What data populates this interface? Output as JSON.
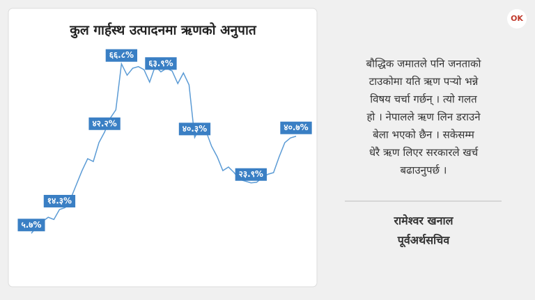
{
  "chart_data": {
    "type": "line",
    "title": "कुल गार्हस्थ उत्पादनमा ऋणको अनुपात",
    "categories": [
      null,
      null,
      null,
      null,
      null,
      null,
      null,
      null,
      null,
      null,
      null,
      null,
      null,
      null,
      null,
      null,
      null,
      null,
      null,
      null,
      null,
      null,
      null,
      null,
      null,
      null,
      null,
      null,
      null,
      null,
      null,
      null,
      null,
      null,
      null,
      null,
      null,
      null,
      null,
      null,
      null,
      null,
      null,
      null,
      null,
      null,
      null,
      null
    ],
    "values": [
      5.7,
      8.2,
      10,
      11.5,
      10.7,
      14.3,
      15,
      18.3,
      23.3,
      28.3,
      32.6,
      31.6,
      38.4,
      42.2,
      47.2,
      50.2,
      66.8,
      62.7,
      65.2,
      65.8,
      64.7,
      60.2,
      66,
      63.9,
      65.2,
      64.2,
      59.7,
      63.5,
      59.2,
      40.3,
      44.1,
      42.6,
      37.1,
      33.3,
      28.3,
      29.6,
      27.6,
      25.1,
      24.5,
      23.9,
      24.1,
      25.8,
      27,
      27.6,
      33.3,
      38.4,
      40.1,
      40.7
    ],
    "value_labels": [
      "५.७%",
      null,
      null,
      null,
      null,
      "१४.३%",
      null,
      null,
      null,
      null,
      null,
      null,
      null,
      "४२.२%",
      null,
      null,
      "६६.८%",
      null,
      null,
      null,
      null,
      null,
      null,
      "६३.९%",
      null,
      null,
      null,
      null,
      null,
      "४०.३%",
      null,
      null,
      null,
      null,
      null,
      null,
      null,
      null,
      null,
      "२३.९%",
      null,
      null,
      null,
      null,
      null,
      null,
      null,
      "४०.७%"
    ],
    "color": "#5b9bd5",
    "ylim": [
      0,
      75
    ]
  },
  "quote": {
    "lines": [
      "बौद्धिक जमातले पनि जनताको",
      "टाउकोमा यति ऋण पर्‍यो भन्ने",
      "विषय चर्चा गर्छन् । त्यो गलत",
      "हो । नेपालले ऋण लिन डराउने",
      "बेला भएको छैन । सकेसम्म",
      "धेरै ऋण लिएर सरकारले खर्च",
      "बढाउनुपर्छ ।"
    ],
    "name": "रामेश्वर खनाल",
    "role": "पूर्वअर्थसचिव"
  },
  "logo": "OK"
}
